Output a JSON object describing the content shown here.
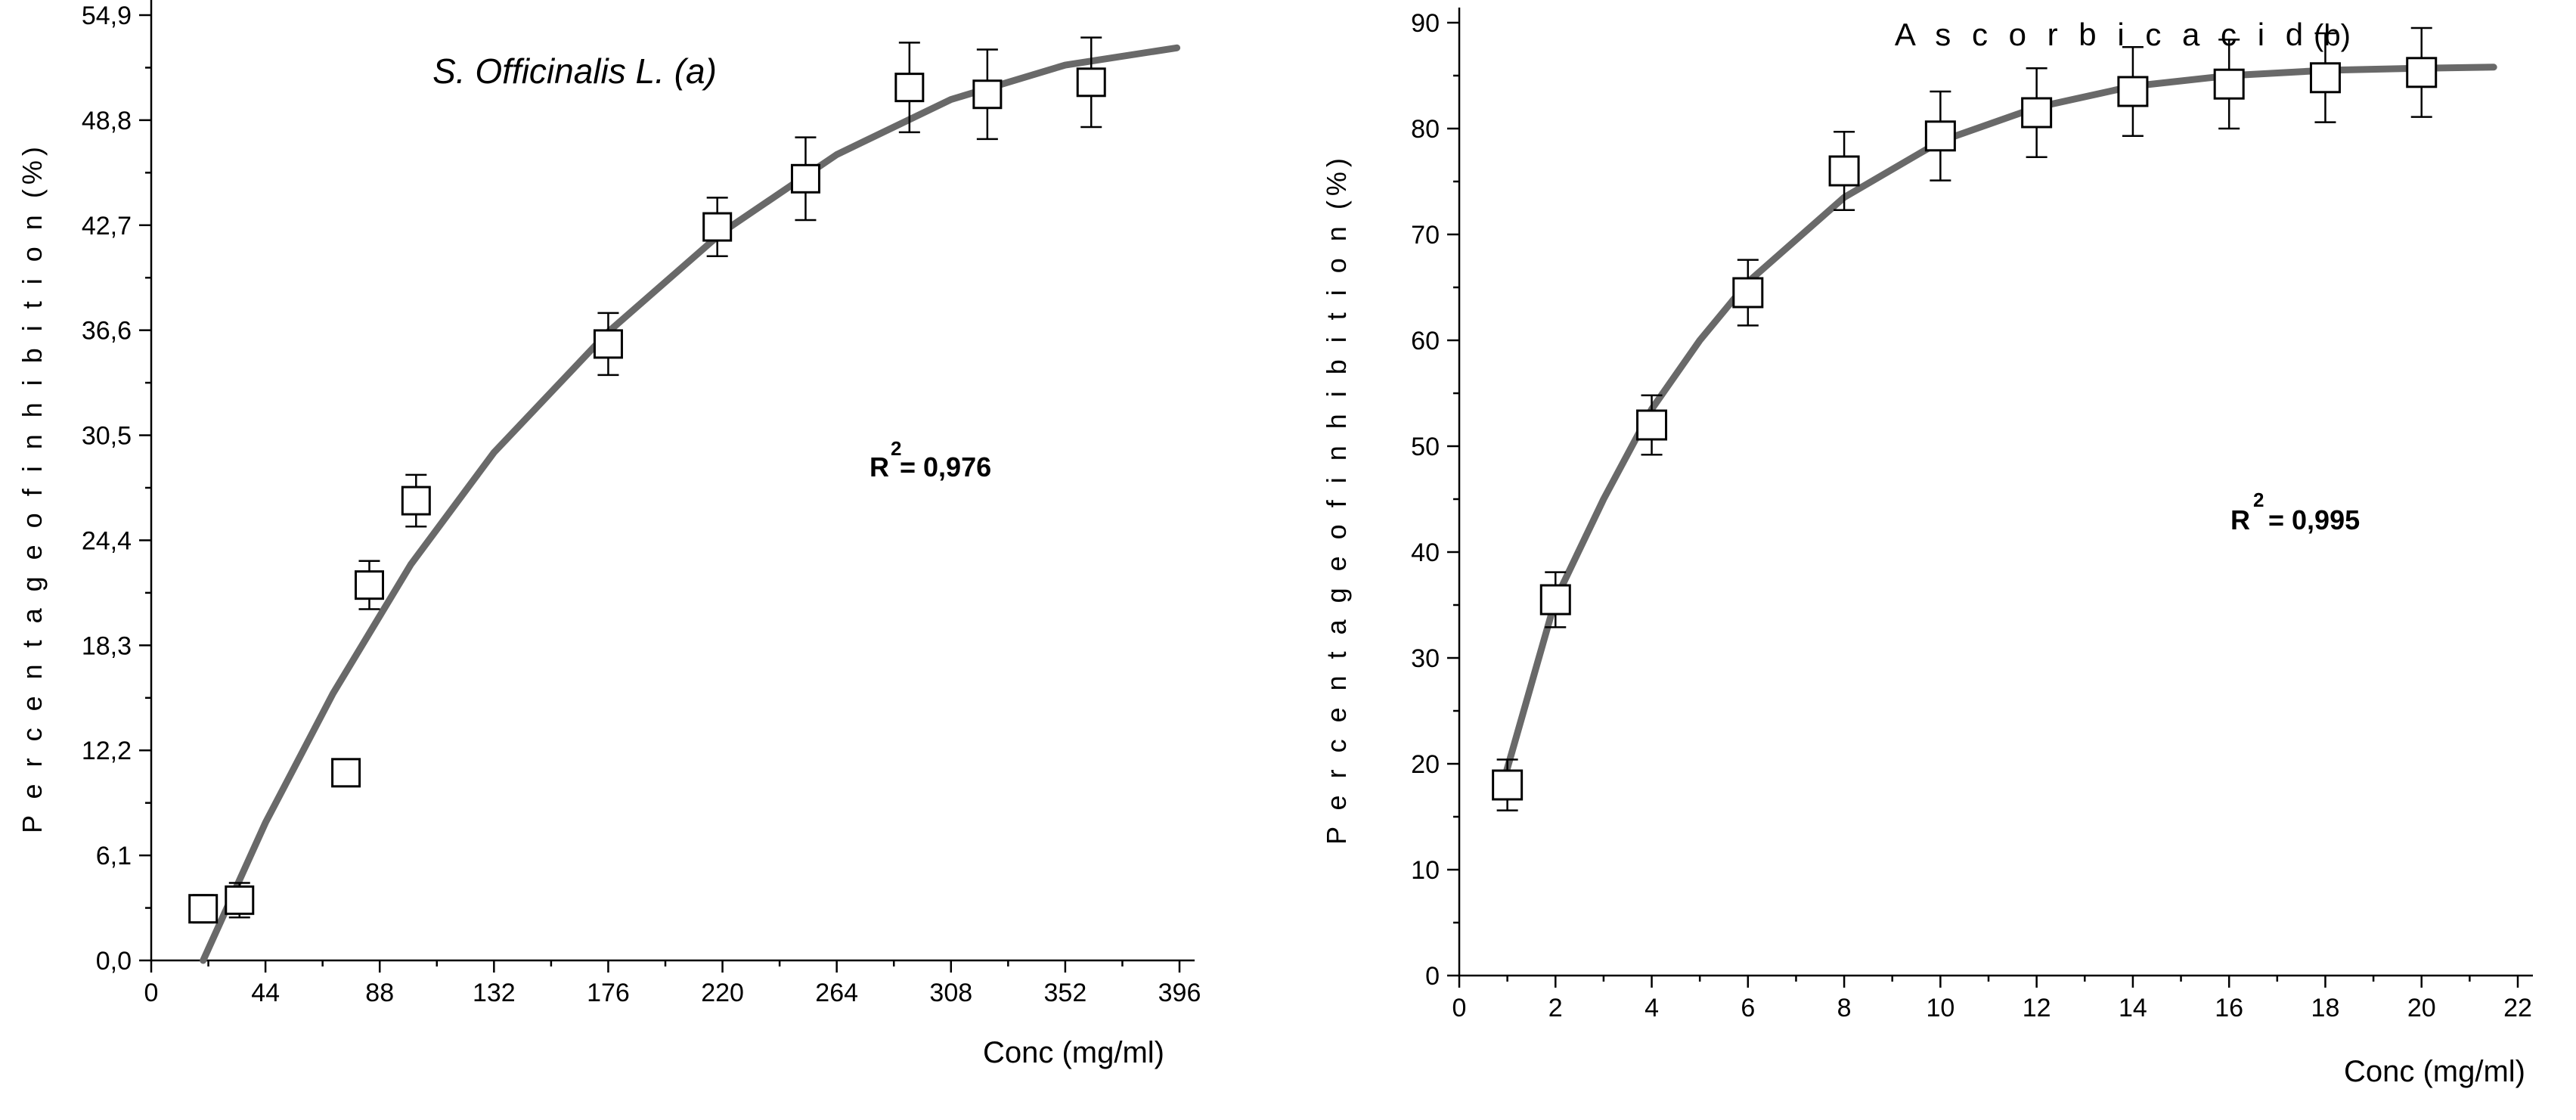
{
  "background_color": "#ffffff",
  "curve_color": "#696969",
  "axis_color": "#000000",
  "marker_fill": "#ffffff",
  "marker_stroke": "#000000",
  "chart_a": {
    "type": "scatter-with-fit",
    "title": "S. Officinalis L. (a)",
    "title_font_style": "italic",
    "title_fontsize": 46,
    "r2_label_prefix": "R",
    "r2_sup": "2",
    "r2_eq": " = 0,976",
    "xlabel": "Conc (mg/ml)",
    "ylabel": "P e r c e n t a g e   o f   i n h i b i t i o n (%)",
    "xlim": [
      0,
      396
    ],
    "ylim": [
      0.0,
      54.9
    ],
    "xticks": [
      0,
      44,
      88,
      132,
      176,
      220,
      264,
      308,
      352,
      396
    ],
    "yticks": [
      0.0,
      6.1,
      12.2,
      18.3,
      24.4,
      30.5,
      36.6,
      42.7,
      48.8,
      54.9
    ],
    "ytick_labels": [
      "0,0",
      "6,1",
      "12,2",
      "18,3",
      "24,4",
      "30,5",
      "36,6",
      "42,7",
      "48,8",
      "54,9"
    ],
    "marker_size": 36,
    "curve_width": 9,
    "points": [
      {
        "x": 20,
        "y": 3.0,
        "err": 0.8
      },
      {
        "x": 34,
        "y": 3.5,
        "err": 1.0
      },
      {
        "x": 75,
        "y": 10.9,
        "err": 0.6
      },
      {
        "x": 84,
        "y": 21.8,
        "err": 1.4
      },
      {
        "x": 102,
        "y": 26.7,
        "err": 1.5
      },
      {
        "x": 176,
        "y": 35.8,
        "err": 1.8
      },
      {
        "x": 218,
        "y": 42.6,
        "err": 1.7
      },
      {
        "x": 252,
        "y": 45.4,
        "err": 2.4
      },
      {
        "x": 292,
        "y": 50.7,
        "err": 2.6
      },
      {
        "x": 322,
        "y": 50.3,
        "err": 2.6
      },
      {
        "x": 362,
        "y": 51.0,
        "err": 2.6
      }
    ],
    "curve": [
      {
        "x": 20,
        "y": 0.0
      },
      {
        "x": 44,
        "y": 8.0
      },
      {
        "x": 70,
        "y": 15.5
      },
      {
        "x": 100,
        "y": 23.0
      },
      {
        "x": 132,
        "y": 29.5
      },
      {
        "x": 176,
        "y": 36.5
      },
      {
        "x": 220,
        "y": 42.3
      },
      {
        "x": 264,
        "y": 46.8
      },
      {
        "x": 308,
        "y": 50.0
      },
      {
        "x": 352,
        "y": 52.0
      },
      {
        "x": 395,
        "y": 53.0
      }
    ]
  },
  "chart_b": {
    "type": "scatter-with-fit",
    "title_text": "A s c o r b i c  a c i d",
    "title_suffix": "(b)",
    "title_fontsize": 42,
    "r2_label_prefix": "R",
    "r2_sup": "2",
    "r2_eq": " =   0,995",
    "xlabel": "Conc (mg/ml)",
    "ylabel": "P e r c e n t a g e   o f   i n h i b i t i o n (%)",
    "xlim": [
      0,
      22
    ],
    "ylim": [
      0,
      90
    ],
    "xticks": [
      0,
      2,
      4,
      6,
      8,
      10,
      12,
      14,
      16,
      18,
      20,
      22
    ],
    "yticks": [
      0,
      10,
      20,
      30,
      40,
      50,
      60,
      70,
      80,
      90
    ],
    "marker_size": 38,
    "curve_width": 7,
    "points": [
      {
        "x": 1,
        "y": 18.0,
        "err": 2.4
      },
      {
        "x": 2,
        "y": 35.5,
        "err": 2.6
      },
      {
        "x": 4,
        "y": 52.0,
        "err": 2.8
      },
      {
        "x": 6,
        "y": 64.5,
        "err": 3.1
      },
      {
        "x": 8,
        "y": 76.0,
        "err": 3.7
      },
      {
        "x": 10,
        "y": 79.3,
        "err": 4.2
      },
      {
        "x": 12,
        "y": 81.5,
        "err": 4.2
      },
      {
        "x": 14,
        "y": 83.5,
        "err": 4.2
      },
      {
        "x": 16,
        "y": 84.2,
        "err": 4.2
      },
      {
        "x": 18,
        "y": 84.8,
        "err": 4.2
      },
      {
        "x": 20,
        "y": 85.3,
        "err": 4.2
      }
    ],
    "curve": [
      {
        "x": 0.9,
        "y": 18.0
      },
      {
        "x": 2,
        "y": 35.5
      },
      {
        "x": 3,
        "y": 45.0
      },
      {
        "x": 4,
        "y": 53.5
      },
      {
        "x": 5,
        "y": 60.0
      },
      {
        "x": 6,
        "y": 65.5
      },
      {
        "x": 8,
        "y": 73.5
      },
      {
        "x": 10,
        "y": 78.8
      },
      {
        "x": 12,
        "y": 82.0
      },
      {
        "x": 14,
        "y": 84.0
      },
      {
        "x": 16,
        "y": 85.0
      },
      {
        "x": 18,
        "y": 85.5
      },
      {
        "x": 20,
        "y": 85.7
      },
      {
        "x": 21.5,
        "y": 85.8
      }
    ]
  }
}
